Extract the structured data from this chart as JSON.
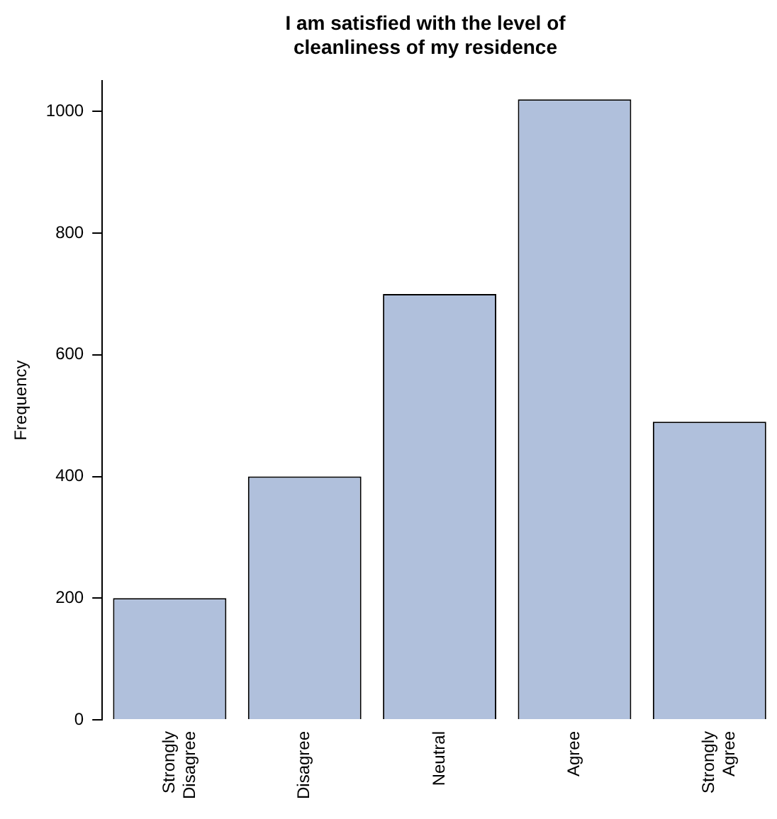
{
  "chart_data": {
    "type": "bar",
    "title": "I am satisfied with the level of cleanliness of my residence",
    "ylabel": "Frequency",
    "categories": [
      "Strongly Disagree",
      "Disagree",
      "Neutral",
      "Agree",
      "Strongly Agree"
    ],
    "values": [
      200,
      400,
      700,
      1020,
      490
    ],
    "color": "#b0c0dc",
    "ylim": [
      0,
      1050
    ],
    "yticks": [
      0,
      200,
      400,
      600,
      800,
      1000
    ],
    "grid": false,
    "legend": false
  }
}
